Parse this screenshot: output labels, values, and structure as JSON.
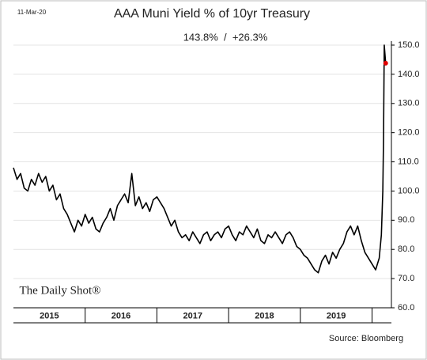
{
  "chart_data": {
    "type": "line",
    "date": "11-Mar-20",
    "title": "AAA Muni Yield % of 10yr Treasury",
    "subtitle": "143.8%  /  +26.3%",
    "brand": "The Daily Shot®",
    "source": "Source: Bloomberg",
    "x": [
      2015,
      2015.05,
      2015.1,
      2015.15,
      2015.2,
      2015.25,
      2015.3,
      2015.35,
      2015.4,
      2015.45,
      2015.5,
      2015.55,
      2015.6,
      2015.65,
      2015.7,
      2015.75,
      2015.8,
      2015.85,
      2015.9,
      2015.95,
      2016,
      2016.05,
      2016.1,
      2016.15,
      2016.2,
      2016.25,
      2016.3,
      2016.35,
      2016.4,
      2016.45,
      2016.5,
      2016.55,
      2016.6,
      2016.65,
      2016.7,
      2016.75,
      2016.8,
      2016.85,
      2016.9,
      2016.95,
      2017,
      2017.05,
      2017.1,
      2017.15,
      2017.2,
      2017.25,
      2017.3,
      2017.35,
      2017.4,
      2017.45,
      2017.5,
      2017.55,
      2017.6,
      2017.65,
      2017.7,
      2017.75,
      2017.8,
      2017.85,
      2017.9,
      2017.95,
      2018,
      2018.05,
      2018.1,
      2018.15,
      2018.2,
      2018.25,
      2018.3,
      2018.35,
      2018.4,
      2018.45,
      2018.5,
      2018.55,
      2018.6,
      2018.65,
      2018.7,
      2018.75,
      2018.8,
      2018.85,
      2018.9,
      2018.95,
      2019,
      2019.05,
      2019.1,
      2019.15,
      2019.2,
      2019.25,
      2019.3,
      2019.35,
      2019.4,
      2019.45,
      2019.5,
      2019.55,
      2019.6,
      2019.65,
      2019.7,
      2019.75,
      2019.8,
      2019.85,
      2019.9,
      2019.95,
      2020,
      2020.05,
      2020.1,
      2020.13,
      2020.15,
      2020.16,
      2020.17,
      2020.19
    ],
    "series": [
      {
        "color": "#000000",
        "values": [
          108,
          104,
          106,
          101,
          100,
          104,
          102,
          106,
          103,
          105,
          100,
          102,
          97,
          99,
          94,
          92,
          89,
          86,
          90,
          88,
          92,
          89,
          91,
          87,
          86,
          89,
          91,
          94,
          90,
          95,
          97,
          99,
          96,
          106,
          95,
          98,
          94,
          96,
          93,
          97,
          98,
          96,
          94,
          91,
          88,
          90,
          86,
          84,
          85,
          83,
          86,
          84,
          82,
          85,
          86,
          83,
          85,
          86,
          84,
          87,
          88,
          85,
          83,
          86,
          85,
          88,
          86,
          84,
          87,
          83,
          82,
          85,
          84,
          86,
          84,
          82,
          85,
          86,
          84,
          81,
          80,
          78,
          77,
          75,
          73,
          72,
          76,
          78,
          75,
          79,
          77,
          80,
          82,
          86,
          88,
          85,
          88,
          83,
          79,
          77,
          75,
          73,
          77,
          85,
          100,
          118,
          150,
          143.8
        ]
      }
    ],
    "last_point_color": "#e00000",
    "xlim": [
      2015,
      2020.27
    ],
    "xticks": [
      {
        "value": 2015.5,
        "label": "2015"
      },
      {
        "value": 2016.5,
        "label": "2016"
      },
      {
        "value": 2017.5,
        "label": "2017"
      },
      {
        "value": 2018.5,
        "label": "2018"
      },
      {
        "value": 2019.5,
        "label": "2019"
      }
    ],
    "year_edges": [
      2016,
      2017,
      2018,
      2019,
      2020
    ],
    "ylim": [
      60,
      150
    ],
    "yticks": [
      {
        "value": 60,
        "label": "60.0"
      },
      {
        "value": 70,
        "label": "70.0"
      },
      {
        "value": 80,
        "label": "80.0"
      },
      {
        "value": 90,
        "label": "90.0"
      },
      {
        "value": 100,
        "label": "100.0"
      },
      {
        "value": 110,
        "label": "110.0"
      },
      {
        "value": 120,
        "label": "120.0"
      },
      {
        "value": 130,
        "label": "130.0"
      },
      {
        "value": 140,
        "label": "140.0"
      },
      {
        "value": 150,
        "label": "150.0"
      }
    ],
    "grid": true
  }
}
